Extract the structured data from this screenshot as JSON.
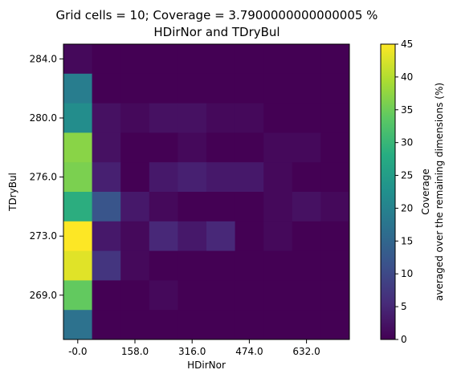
{
  "chart_data": {
    "type": "heatmap",
    "title_line1": "Grid cells = 10; Coverage = 3.7900000000000005 %",
    "title_line2": "HDirNor and TDryBul",
    "xlabel": "HDirNor",
    "ylabel": "TDryBul",
    "x_ticks": [
      "-0.0",
      "158.0",
      "316.0",
      "474.0",
      "632.0"
    ],
    "y_ticks": [
      "284.0",
      "280.0",
      "276.0",
      "273.0",
      "269.0"
    ],
    "colorbar": {
      "label_line1": "Coverage",
      "label_line2": "averaged over the remaining dimensions (%)",
      "min": 0,
      "max": 45,
      "ticks": [
        "0",
        "5",
        "10",
        "15",
        "20",
        "25",
        "30",
        "35",
        "40",
        "45"
      ],
      "colormap": "viridis"
    },
    "grid_rows_top_to_bottom": [
      [
        1,
        0,
        0,
        0,
        0,
        0,
        0,
        0,
        0,
        0
      ],
      [
        19,
        0,
        0,
        0,
        0,
        0,
        0,
        0,
        0,
        0
      ],
      [
        22,
        2,
        1,
        2,
        2,
        1,
        1,
        0,
        0,
        0
      ],
      [
        37,
        2,
        0,
        0,
        1,
        0,
        0,
        1,
        1,
        0
      ],
      [
        36,
        4,
        0,
        3,
        4,
        3,
        3,
        1,
        0,
        0
      ],
      [
        28,
        12,
        3,
        1,
        0,
        0,
        0,
        1,
        2,
        1
      ],
      [
        45,
        3,
        1,
        5,
        3,
        5,
        0,
        1,
        0,
        0
      ],
      [
        43,
        7,
        1,
        0,
        0,
        0,
        0,
        0,
        0,
        0
      ],
      [
        34,
        0,
        0,
        1,
        0,
        0,
        0,
        0,
        0,
        0
      ],
      [
        17,
        0,
        0,
        0,
        0,
        0,
        0,
        0,
        0,
        0
      ]
    ]
  }
}
